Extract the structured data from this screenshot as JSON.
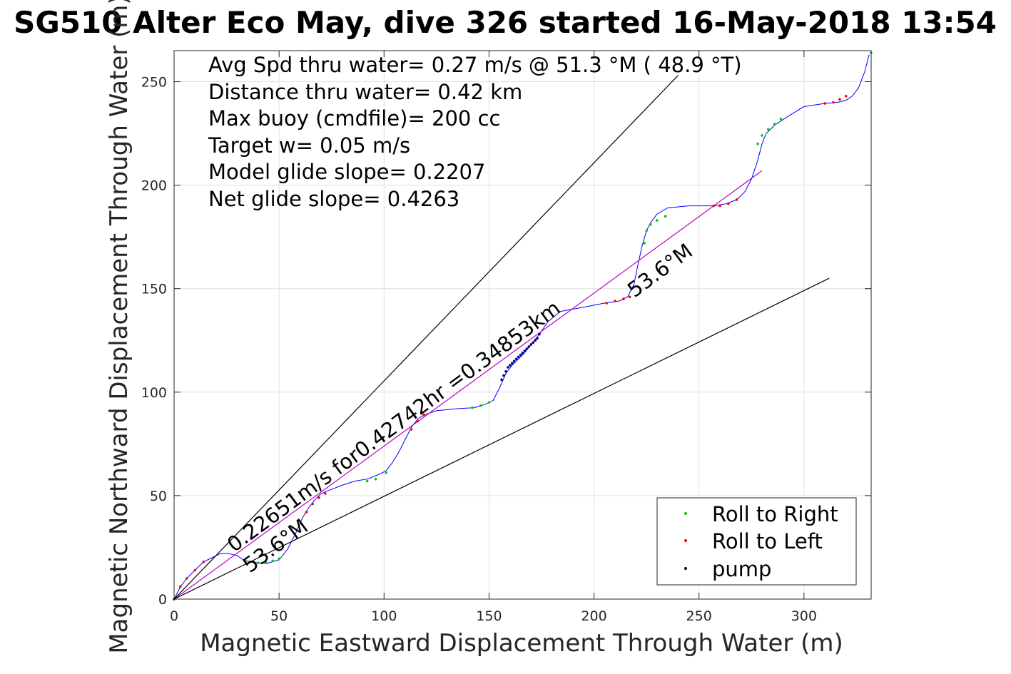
{
  "chart_data": {
    "type": "line",
    "title": "SG510 Alter Eco May, dive 326 started 16-May-2018 13:54",
    "xlabel": "Magnetic Eastward Displacement Through Water (m)",
    "ylabel": "Magnetic Northward Displacement Through Water (m)",
    "xlim": [
      0,
      332
    ],
    "ylim": [
      0,
      265
    ],
    "xticks": [
      0,
      50,
      100,
      150,
      200,
      250,
      300
    ],
    "yticks": [
      0,
      50,
      100,
      150,
      200,
      250
    ],
    "grid": true,
    "legend_position": "bottom-right",
    "info_lines": [
      "Avg Spd thru water=  0.27 m/s @  51.3 °M ( 48.9 °T)",
      "Distance thru water=  0.42 km",
      "Max buoy (cmdfile)= 200 cc",
      "Target w= 0.05 m/s",
      "Model glide slope= 0.2207",
      "Net glide slope= 0.4263"
    ],
    "diagonal_label": "0.22651m/s for0.42742hr =0.34853km",
    "heading_label": "53.6°M",
    "colors": {
      "track": "#0000ff",
      "heading_line": "#c000c0",
      "roll_right": "#00cc00",
      "roll_left": "#ff0000",
      "pump": "#000080",
      "bounds": "#000000"
    },
    "series": [
      {
        "type": "line",
        "x": [
          0,
          3,
          6,
          10,
          14,
          18,
          22,
          26,
          30,
          33,
          36,
          40,
          45,
          50,
          54,
          58,
          61,
          64,
          67,
          70,
          75,
          80,
          86,
          92,
          97,
          101,
          104,
          107,
          110,
          113,
          116,
          119,
          125,
          135,
          143,
          148,
          152,
          155,
          158,
          161,
          164,
          167,
          170,
          174,
          178,
          184,
          195,
          205,
          212,
          216,
          219,
          221,
          223,
          225,
          227,
          230,
          235,
          245,
          257,
          263,
          268,
          272,
          275,
          278,
          280,
          282,
          286,
          292,
          300,
          310,
          316,
          320,
          323,
          326,
          329,
          331
        ],
        "y": [
          0,
          6,
          10,
          14,
          18,
          20,
          22,
          22,
          21,
          19,
          18,
          17.5,
          17.5,
          19,
          24,
          32,
          39,
          44,
          48,
          51,
          53,
          55,
          57,
          58,
          60,
          62,
          66,
          71,
          77,
          83,
          87,
          89,
          91,
          92,
          92.5,
          94,
          96,
          102,
          109,
          113,
          116,
          119,
          123,
          128,
          134,
          139,
          141,
          143,
          144,
          146,
          152,
          162,
          171,
          178,
          182,
          186,
          189,
          190,
          190,
          191,
          193,
          197,
          203,
          212,
          220,
          225,
          229,
          233,
          238,
          239.5,
          240,
          241,
          243,
          247,
          255,
          263
        ]
      },
      {
        "type": "heading-line",
        "x": [
          0,
          280
        ],
        "y": [
          0,
          207
        ]
      },
      {
        "type": "bound-line",
        "x": [
          0,
          240
        ],
        "y": [
          0,
          253
        ]
      },
      {
        "type": "bound-line",
        "x": [
          0,
          312
        ],
        "y": [
          0,
          155
        ]
      },
      {
        "type": "scatter",
        "name": "Roll to Right",
        "x": [
          36,
          40,
          44,
          47,
          50,
          92,
          96,
          101,
          142,
          146,
          150,
          224,
          225,
          227,
          230,
          234,
          278,
          280,
          283,
          286,
          289,
          332
        ],
        "y": [
          18,
          17.5,
          17.5,
          18.5,
          19.5,
          57,
          58,
          61,
          92.5,
          93.5,
          95,
          172,
          178,
          181,
          183,
          185,
          220,
          224,
          227,
          229.5,
          232,
          264
        ]
      },
      {
        "type": "scatter",
        "name": "Roll to Left",
        "x": [
          3,
          6,
          10,
          14,
          63,
          66,
          69,
          72,
          113,
          116,
          119,
          206,
          210,
          214,
          217,
          257,
          260,
          264,
          268,
          310,
          314,
          317,
          320
        ],
        "y": [
          6,
          10,
          14,
          18,
          42,
          46,
          49,
          51,
          82,
          86,
          89,
          143,
          144,
          145,
          146,
          190,
          190,
          191,
          193,
          239.5,
          240,
          241.5,
          243
        ]
      },
      {
        "type": "scatter",
        "name": "pump",
        "x": [
          0,
          156,
          157,
          158,
          159,
          160,
          161,
          162,
          163,
          164,
          165,
          166,
          167,
          168,
          169,
          170,
          171,
          172,
          173,
          174
        ],
        "y": [
          0,
          106,
          108,
          110,
          112,
          113,
          114,
          115,
          116,
          117,
          118,
          119,
          120,
          121,
          122,
          123,
          124,
          125,
          126,
          128
        ]
      }
    ]
  }
}
